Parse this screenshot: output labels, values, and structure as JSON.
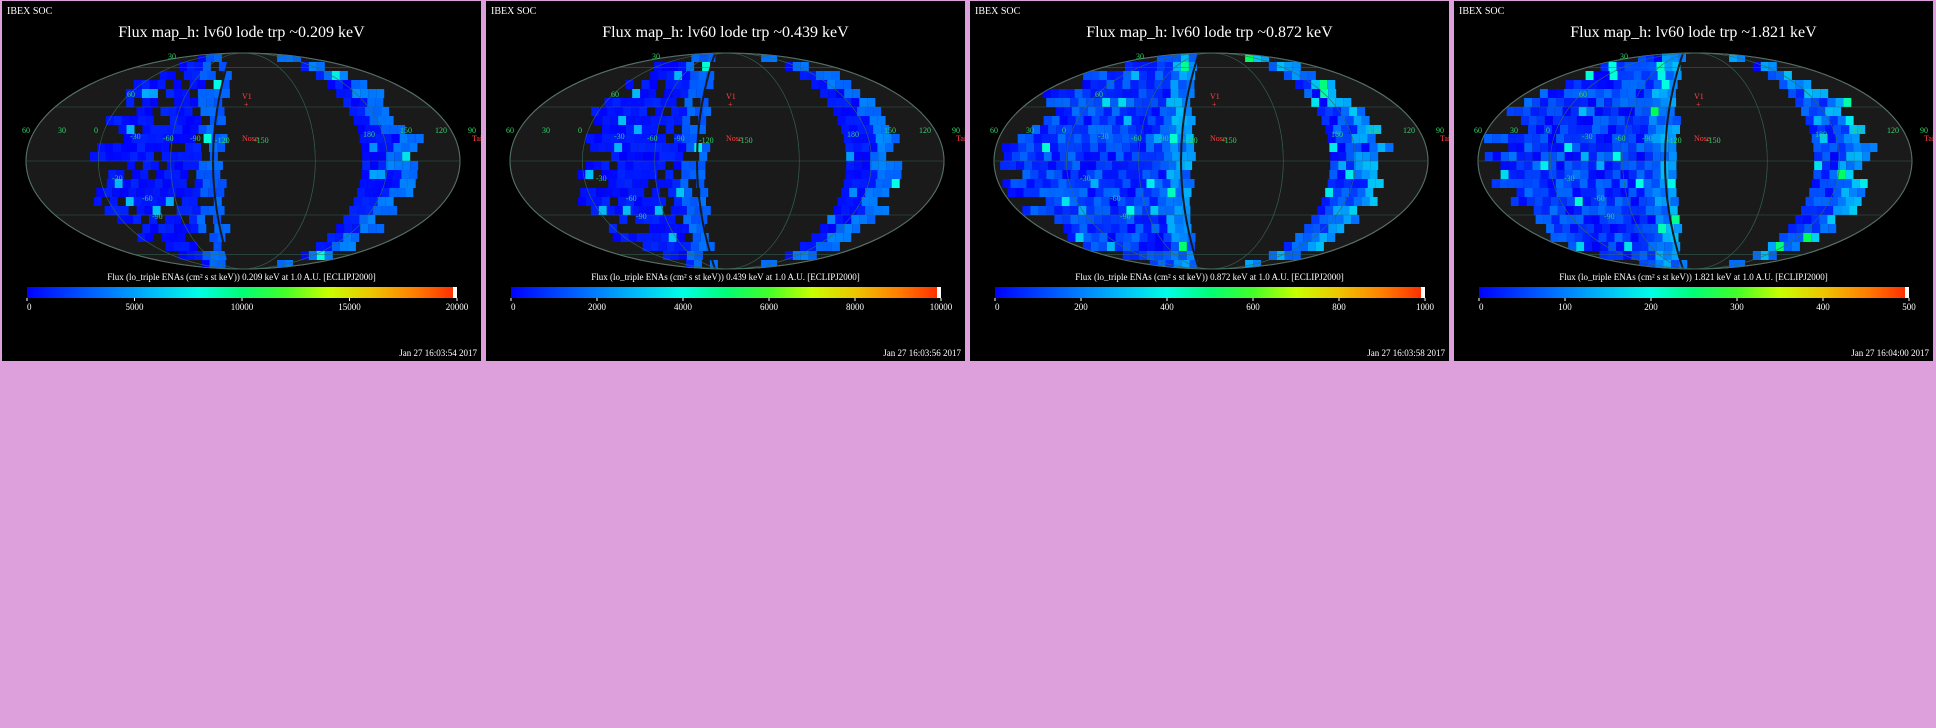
{
  "page": {
    "background": "#dda0dd",
    "panel_background": "#000000"
  },
  "chart_data": [
    {
      "type": "heatmap",
      "projection": "mollweide",
      "header": "IBEX SOC",
      "title": "Flux   map_h: lv60 lode trp ~0.209 keV",
      "colorbar_label": "Flux (lo_triple ENAs (cm² s st keV))  0.209 keV at 1.0 A.U. [ECLIPJ2000]",
      "colorbar_range": [
        0,
        20000
      ],
      "colorbar_ticks": [
        "0",
        "5000",
        "10000",
        "15000",
        "20000"
      ],
      "timestamp": "Jan 27 16:03:54 2017",
      "intensity": "low",
      "grid_labels": [
        "60",
        "30",
        "0",
        "-30",
        "-60",
        "-90",
        "-120",
        "-150",
        "180",
        "150",
        "120",
        "90",
        "30",
        "60",
        "-30",
        "-60",
        "-90"
      ],
      "markers": {
        "v1": "V1",
        "nose": "Nose",
        "tail": "Tail"
      }
    },
    {
      "type": "heatmap",
      "projection": "mollweide",
      "header": "IBEX SOC",
      "title": "Flux   map_h: lv60 lode trp ~0.439 keV",
      "colorbar_label": "Flux (lo_triple ENAs (cm² s st keV))  0.439 keV at 1.0 A.U. [ECLIPJ2000]",
      "colorbar_range": [
        0,
        10000
      ],
      "colorbar_ticks": [
        "0",
        "2000",
        "4000",
        "6000",
        "8000",
        "10000"
      ],
      "timestamp": "Jan 27 16:03:56 2017",
      "intensity": "low",
      "grid_labels": [
        "60",
        "30",
        "0",
        "-30",
        "-60",
        "-90",
        "-120",
        "-150",
        "180",
        "150",
        "120",
        "90",
        "30",
        "60",
        "-30",
        "-60",
        "-90"
      ],
      "markers": {
        "v1": "V1",
        "nose": "Nose",
        "tail": "Tail"
      }
    },
    {
      "type": "heatmap",
      "projection": "mollweide",
      "header": "IBEX SOC",
      "title": "Flux   map_h: lv60 lode trp ~0.872 keV",
      "colorbar_label": "Flux (lo_triple ENAs (cm² s st keV))  0.872 keV at 1.0 A.U. [ECLIPJ2000]",
      "colorbar_range": [
        0,
        1000
      ],
      "colorbar_ticks": [
        "0",
        "200",
        "400",
        "600",
        "800",
        "1000"
      ],
      "timestamp": "Jan 27 16:03:58 2017",
      "intensity": "medium",
      "grid_labels": [
        "60",
        "30",
        "0",
        "-30",
        "-60",
        "-90",
        "-120",
        "-150",
        "180",
        "150",
        "120",
        "90",
        "30",
        "60",
        "-30",
        "-60",
        "-90"
      ],
      "markers": {
        "v1": "V1",
        "nose": "Nose",
        "tail": "Tail"
      }
    },
    {
      "type": "heatmap",
      "projection": "mollweide",
      "header": "IBEX SOC",
      "title": "Flux   map_h: lv60 lode trp ~1.821 keV",
      "colorbar_label": "Flux (lo_triple ENAs (cm² s st keV))  1.821 keV at 1.0 A.U. [ECLIPJ2000]",
      "colorbar_range": [
        0,
        500
      ],
      "colorbar_ticks": [
        "0",
        "100",
        "200",
        "300",
        "400",
        "500"
      ],
      "timestamp": "Jan 27 16:04:00 2017",
      "intensity": "medium",
      "grid_labels": [
        "60",
        "30",
        "0",
        "-30",
        "-60",
        "-90",
        "-120",
        "-150",
        "180",
        "150",
        "120",
        "90",
        "30",
        "60",
        "-30",
        "-60",
        "-90"
      ],
      "markers": {
        "v1": "V1",
        "nose": "Nose",
        "tail": "Tail"
      }
    }
  ]
}
